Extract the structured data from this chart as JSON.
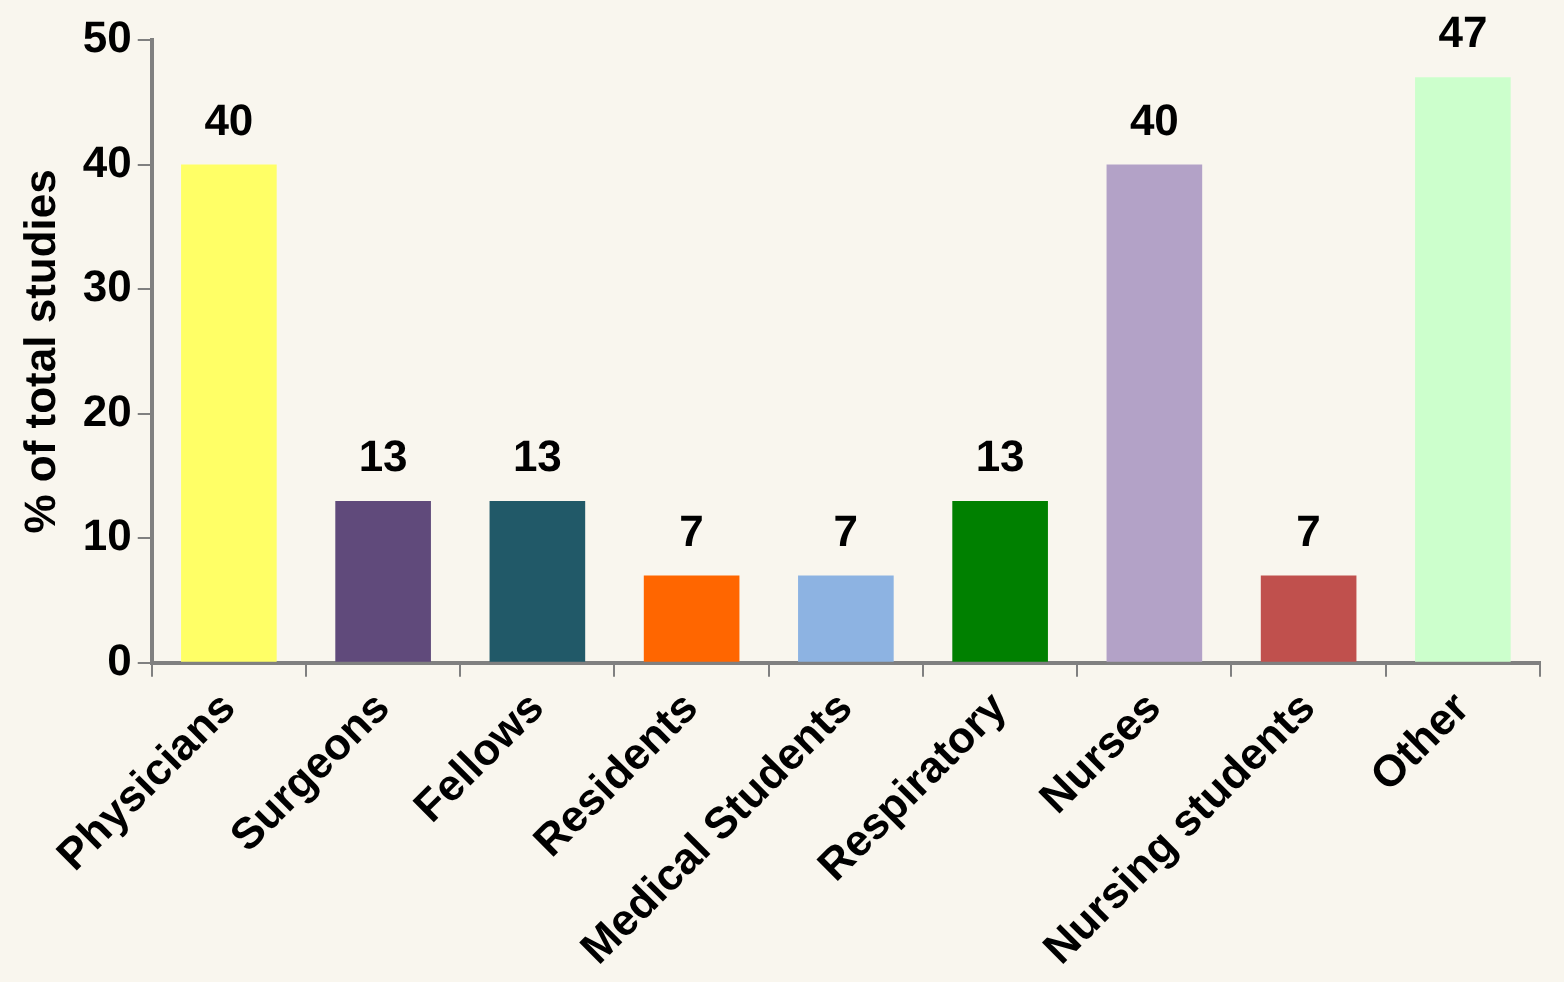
{
  "chart_data": {
    "type": "bar",
    "ylabel": "% of total studies",
    "categories": [
      "Physicians",
      "Surgeons",
      "Fellows",
      "Residents",
      "Medical Students",
      "Respiratory",
      "Nurses",
      "Nursing students",
      "Other"
    ],
    "values": [
      40,
      13,
      13,
      7,
      7,
      13,
      40,
      7,
      47
    ],
    "colors": [
      "#ffff66",
      "#604a7b",
      "#215968",
      "#ff6600",
      "#8db3e2",
      "#008000",
      "#b3a2c7",
      "#c0504d",
      "#ccffcc"
    ],
    "ylim": [
      0,
      50
    ],
    "yticks": [
      0,
      10,
      20,
      30,
      40,
      50
    ],
    "grid": false,
    "legend": false,
    "data_labels": true
  }
}
